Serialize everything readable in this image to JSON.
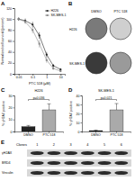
{
  "chart_data": [
    {
      "type": "line",
      "title": "A",
      "xlabel": "PTC 518 (μM)",
      "ylabel": "Normalized cell survival (percent)",
      "log": "x",
      "legend": "upper right",
      "x": [
        0.01,
        0.03,
        0.1,
        0.3,
        1,
        3,
        10
      ],
      "xlim": [
        0.005,
        20
      ],
      "xticks": [
        0.01,
        0.1,
        1,
        10
      ],
      "ylim": [
        0,
        120
      ],
      "yticks": [
        0,
        20,
        40,
        60,
        80,
        100,
        120
      ],
      "series": [
        {
          "name": "H226",
          "color": "#222222",
          "marker": "circle",
          "line_style": "solid",
          "values": [
            100,
            97,
            90,
            70,
            35,
            15,
            8
          ],
          "errors": [
            3,
            4,
            5,
            6,
            5,
            3,
            2
          ]
        },
        {
          "name": "SK-MES-1",
          "color": "#888888",
          "marker": "square",
          "line_style": "solid",
          "values": [
            100,
            95,
            80,
            55,
            25,
            10,
            5
          ],
          "errors": [
            3,
            4,
            6,
            7,
            5,
            3,
            2
          ]
        }
      ]
    },
    {
      "type": "image-grid",
      "title": "B",
      "columns": [
        "DMSO",
        "PTC 518"
      ],
      "rows": [
        "H226",
        "SK-MES-1"
      ]
    },
    {
      "type": "bar",
      "title": "C",
      "subtitle": "H226",
      "ylabel": "% γH2AX positive",
      "categories": [
        "DMSO",
        "PTC 518"
      ],
      "values": [
        4,
        18
      ],
      "errors": [
        1,
        5
      ],
      "colors": [
        "#222222",
        "#aaaaaa"
      ],
      "ylim": [
        0,
        30
      ],
      "yticks": [
        0,
        10,
        20,
        30
      ],
      "annotation": "p=0.036"
    },
    {
      "type": "bar",
      "title": "D",
      "subtitle": "SK-MES-1",
      "ylabel": "% γH2AX positive",
      "categories": [
        "DMSO",
        "PTC 518"
      ],
      "values": [
        1,
        24
      ],
      "errors": [
        0.5,
        7
      ],
      "colors": [
        "#222222",
        "#aaaaaa"
      ],
      "ylim": [
        0,
        40
      ],
      "yticks": [
        0,
        10,
        20,
        30,
        40
      ],
      "annotation": "p=0.021"
    },
    {
      "type": "blot",
      "title": "E",
      "lane_title": "Clones",
      "lanes": [
        "1",
        "2",
        "3",
        "4",
        "5",
        "6"
      ],
      "rows": [
        "γH2AX",
        "BRD4",
        "Vinculin"
      ]
    }
  ]
}
